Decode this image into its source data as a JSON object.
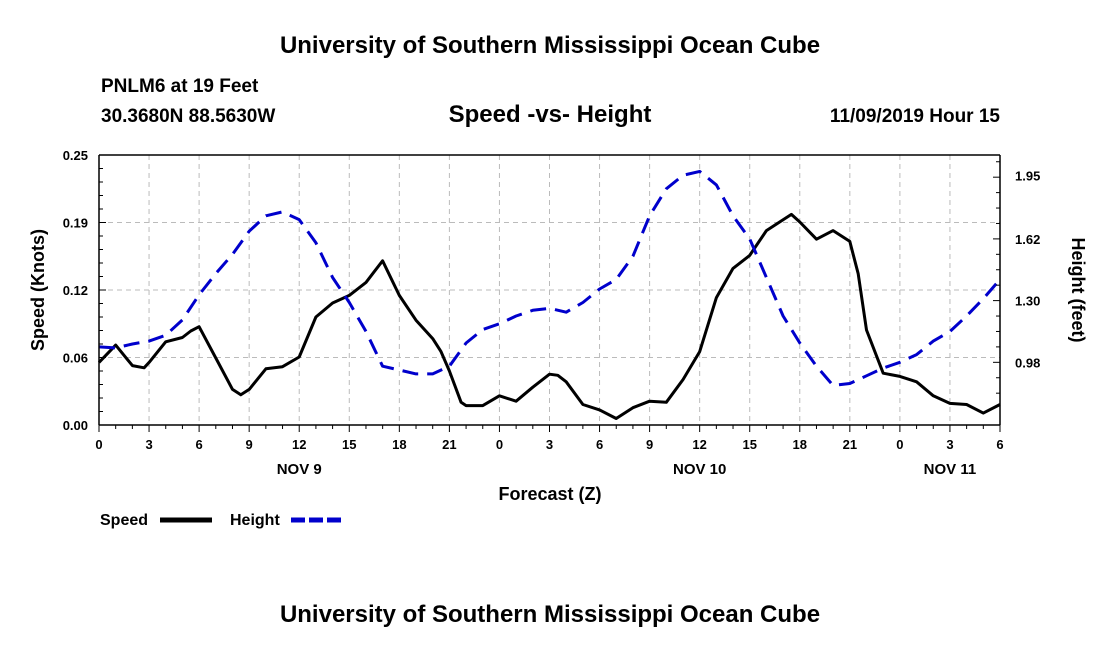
{
  "header": {
    "title": "University of Southern Mississippi Ocean Cube",
    "station": "PNLM6 at 19 Feet",
    "coords": "30.3680N 88.5630W",
    "subtitle": "Speed -vs- Height",
    "datetime": "11/09/2019 Hour 15"
  },
  "footer": {
    "title": "University of Southern Mississippi Ocean Cube"
  },
  "chart_data": {
    "type": "line",
    "xlabel": "Forecast (Z)",
    "x_range_hours": [
      0,
      54
    ],
    "x_ticks": [
      {
        "hour": 0,
        "label": "0"
      },
      {
        "hour": 3,
        "label": "3"
      },
      {
        "hour": 6,
        "label": "6"
      },
      {
        "hour": 9,
        "label": "9"
      },
      {
        "hour": 12,
        "label": "12"
      },
      {
        "hour": 15,
        "label": "15"
      },
      {
        "hour": 18,
        "label": "18"
      },
      {
        "hour": 21,
        "label": "21"
      },
      {
        "hour": 24,
        "label": "0"
      },
      {
        "hour": 27,
        "label": "3"
      },
      {
        "hour": 30,
        "label": "6"
      },
      {
        "hour": 33,
        "label": "9"
      },
      {
        "hour": 36,
        "label": "12"
      },
      {
        "hour": 39,
        "label": "15"
      },
      {
        "hour": 42,
        "label": "18"
      },
      {
        "hour": 45,
        "label": "21"
      },
      {
        "hour": 48,
        "label": "0"
      },
      {
        "hour": 51,
        "label": "3"
      },
      {
        "hour": 54,
        "label": "6"
      }
    ],
    "day_labels": [
      {
        "hour": 12,
        "label": "NOV 9"
      },
      {
        "hour": 36,
        "label": "NOV 10"
      },
      {
        "hour": 51,
        "label": "NOV 11"
      }
    ],
    "y_left": {
      "label": "Speed (Knots)",
      "range": [
        0,
        0.25
      ],
      "ticks": [
        {
          "v": 0,
          "label": "0.00"
        },
        {
          "v": 0.0625,
          "label": "0.06"
        },
        {
          "v": 0.125,
          "label": "0.12"
        },
        {
          "v": 0.1875,
          "label": "0.19"
        },
        {
          "v": 0.25,
          "label": "0.25"
        }
      ]
    },
    "y_right": {
      "label": "Height (feet)",
      "range": [
        0.655,
        2.055
      ],
      "ticks": [
        {
          "v": 0.98,
          "label": "0.98"
        },
        {
          "v": 1.3,
          "label": "1.30"
        },
        {
          "v": 1.62,
          "label": "1.62"
        },
        {
          "v": 1.95,
          "label": "1.95"
        }
      ]
    },
    "grid": true,
    "series": [
      {
        "name": "Speed",
        "axis": "left",
        "color": "#000000",
        "style": "solid",
        "x": [
          0,
          1,
          2,
          2.7,
          3,
          4,
          5,
          5.5,
          6,
          7,
          8,
          8.5,
          9,
          10,
          11,
          12,
          13,
          14,
          15,
          16,
          16.5,
          17,
          18,
          19,
          20,
          20.5,
          21,
          21.7,
          22,
          23,
          24,
          25,
          26,
          27,
          27.5,
          28,
          29,
          30,
          31,
          32,
          33,
          34,
          35,
          36,
          37,
          38,
          39,
          40,
          41,
          41.5,
          42,
          43,
          44,
          45,
          45.5,
          46,
          47,
          48,
          49,
          50,
          51,
          52,
          53,
          54
        ],
        "y": [
          0.058,
          0.074,
          0.055,
          0.053,
          0.058,
          0.077,
          0.081,
          0.087,
          0.091,
          0.062,
          0.033,
          0.028,
          0.033,
          0.052,
          0.054,
          0.063,
          0.1,
          0.113,
          0.12,
          0.132,
          0.142,
          0.152,
          0.12,
          0.097,
          0.08,
          0.068,
          0.05,
          0.021,
          0.018,
          0.018,
          0.027,
          0.022,
          0.035,
          0.047,
          0.046,
          0.04,
          0.019,
          0.014,
          0.006,
          0.016,
          0.022,
          0.021,
          0.042,
          0.068,
          0.118,
          0.145,
          0.157,
          0.18,
          0.19,
          0.195,
          0.188,
          0.172,
          0.18,
          0.17,
          0.14,
          0.088,
          0.048,
          0.045,
          0.04,
          0.027,
          0.02,
          0.019,
          0.011,
          0.019
        ]
      },
      {
        "name": "Height",
        "axis": "right",
        "color": "#0000cc",
        "style": "dashed",
        "x": [
          0,
          1,
          2,
          3,
          4,
          5,
          6,
          7,
          8,
          9,
          10,
          11,
          12,
          13,
          14,
          15,
          16,
          17,
          18,
          19,
          20,
          21,
          22,
          23,
          24,
          25,
          26,
          27,
          28,
          29,
          30,
          31,
          32,
          33,
          34,
          35,
          36,
          37,
          38,
          39,
          40,
          41,
          42,
          43,
          44,
          45,
          46,
          47,
          48,
          49,
          50,
          51,
          52,
          53,
          54
        ],
        "y": [
          1.06,
          1.055,
          1.075,
          1.09,
          1.12,
          1.2,
          1.33,
          1.44,
          1.54,
          1.66,
          1.74,
          1.76,
          1.72,
          1.6,
          1.42,
          1.29,
          1.14,
          0.96,
          0.94,
          0.92,
          0.92,
          0.96,
          1.08,
          1.15,
          1.18,
          1.22,
          1.25,
          1.26,
          1.24,
          1.29,
          1.36,
          1.41,
          1.53,
          1.74,
          1.88,
          1.95,
          1.97,
          1.9,
          1.74,
          1.62,
          1.42,
          1.22,
          1.08,
          0.96,
          0.86,
          0.87,
          0.91,
          0.95,
          0.98,
          1.02,
          1.09,
          1.14,
          1.22,
          1.31,
          1.41
        ]
      }
    ],
    "legend": [
      {
        "label": "Speed",
        "color": "#000000",
        "style": "solid"
      },
      {
        "label": "Height",
        "color": "#0000cc",
        "style": "dashed"
      }
    ],
    "legend_placement": "bottom-left"
  }
}
